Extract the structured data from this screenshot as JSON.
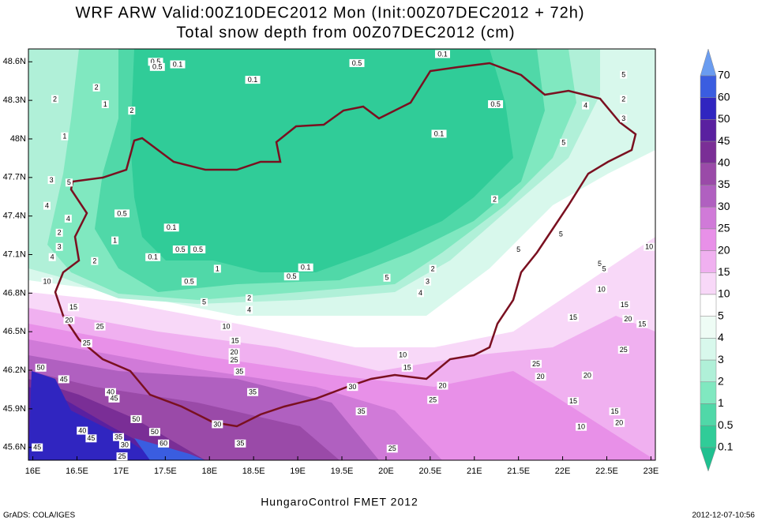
{
  "chart_data": {
    "type": "contour-map",
    "title": "WRF ARW Valid:00Z10DEC2012 Mon (Init:00Z07DEC2012 + 72h)",
    "subtitle": "Total snow depth from 00Z07DEC2012 (cm)",
    "xlim": [
      15.95,
      23.05
    ],
    "ylim": [
      45.5,
      48.7
    ],
    "xticks": [
      {
        "value": 16,
        "label": "16E"
      },
      {
        "value": 16.5,
        "label": "16.5E"
      },
      {
        "value": 17,
        "label": "17E"
      },
      {
        "value": 17.5,
        "label": "17.5E"
      },
      {
        "value": 18,
        "label": "18E"
      },
      {
        "value": 18.5,
        "label": "18.5E"
      },
      {
        "value": 19,
        "label": "19E"
      },
      {
        "value": 19.5,
        "label": "19.5E"
      },
      {
        "value": 20,
        "label": "20E"
      },
      {
        "value": 20.5,
        "label": "20.5E"
      },
      {
        "value": 21,
        "label": "21E"
      },
      {
        "value": 21.5,
        "label": "21.5E"
      },
      {
        "value": 22,
        "label": "22E"
      },
      {
        "value": 22.5,
        "label": "22.5E"
      },
      {
        "value": 23,
        "label": "23E"
      }
    ],
    "yticks": [
      {
        "value": 45.6,
        "label": "45.6N"
      },
      {
        "value": 45.9,
        "label": "45.9N"
      },
      {
        "value": 46.2,
        "label": "46.2N"
      },
      {
        "value": 46.5,
        "label": "46.5N"
      },
      {
        "value": 46.8,
        "label": "46.8N"
      },
      {
        "value": 47.1,
        "label": "47.1N"
      },
      {
        "value": 47.4,
        "label": "47.4N"
      },
      {
        "value": 47.7,
        "label": "47.7N"
      },
      {
        "value": 48,
        "label": "48N"
      },
      {
        "value": 48.3,
        "label": "48.3N"
      },
      {
        "value": 48.6,
        "label": "48.6N"
      }
    ],
    "colorbar": {
      "levels": [
        70,
        60,
        50,
        45,
        40,
        35,
        30,
        25,
        20,
        15,
        10,
        5,
        4,
        3,
        2,
        1,
        0.5,
        0.1
      ],
      "colors": [
        "#6a9cf0",
        "#3a5de0",
        "#3025c0",
        "#5a20a0",
        "#7a2e96",
        "#9a4aa8",
        "#b060c0",
        "#d07ad8",
        "#e890e8",
        "#f0b0f0",
        "#f8d8f8",
        "#ffffff",
        "#eefcf5",
        "#d8f8ec",
        "#b0f0d8",
        "#80e8c0",
        "#50d8a8",
        "#30cc98",
        "#20c090"
      ]
    },
    "contour_labels": [
      {
        "text": "0.5",
        "lon": 17.39,
        "lat": 48.6
      },
      {
        "text": "0.5",
        "lon": 17.41,
        "lat": 48.56
      },
      {
        "text": "0.1",
        "lon": 17.64,
        "lat": 48.58
      },
      {
        "text": "0.1",
        "lon": 18.49,
        "lat": 48.46
      },
      {
        "text": "0.5",
        "lon": 19.67,
        "lat": 48.59
      },
      {
        "text": "0.1",
        "lon": 20.64,
        "lat": 48.66
      },
      {
        "text": "2",
        "lon": 16.72,
        "lat": 48.4
      },
      {
        "text": "2",
        "lon": 16.25,
        "lat": 48.31
      },
      {
        "text": "1",
        "lon": 16.82,
        "lat": 48.27
      },
      {
        "text": "2",
        "lon": 17.12,
        "lat": 48.22
      },
      {
        "text": "1",
        "lon": 16.36,
        "lat": 48.02
      },
      {
        "text": "0.1",
        "lon": 20.6,
        "lat": 48.04
      },
      {
        "text": "0.5",
        "lon": 21.24,
        "lat": 48.27
      },
      {
        "text": "5",
        "lon": 22.69,
        "lat": 48.5
      },
      {
        "text": "2",
        "lon": 22.69,
        "lat": 48.31
      },
      {
        "text": "4",
        "lon": 22.26,
        "lat": 48.26
      },
      {
        "text": "3",
        "lon": 22.69,
        "lat": 48.16
      },
      {
        "text": "5",
        "lon": 22.01,
        "lat": 47.97
      },
      {
        "text": "2",
        "lon": 21.23,
        "lat": 47.53
      },
      {
        "text": "5",
        "lon": 21.98,
        "lat": 47.26
      },
      {
        "text": "5",
        "lon": 21.5,
        "lat": 47.14
      },
      {
        "text": "2",
        "lon": 20.53,
        "lat": 46.99
      },
      {
        "text": "3",
        "lon": 20.47,
        "lat": 46.89
      },
      {
        "text": "5",
        "lon": 20.01,
        "lat": 46.92
      },
      {
        "text": "4",
        "lon": 20.39,
        "lat": 46.8
      },
      {
        "text": "0.1",
        "lon": 19.09,
        "lat": 47.0
      },
      {
        "text": "0.5",
        "lon": 18.93,
        "lat": 46.93
      },
      {
        "text": "0.5",
        "lon": 17.01,
        "lat": 47.42
      },
      {
        "text": "0.1",
        "lon": 17.57,
        "lat": 47.31
      },
      {
        "text": "1",
        "lon": 16.93,
        "lat": 47.21
      },
      {
        "text": "0.5",
        "lon": 17.67,
        "lat": 47.14
      },
      {
        "text": "0.5",
        "lon": 17.87,
        "lat": 47.14
      },
      {
        "text": "0.1",
        "lon": 17.36,
        "lat": 47.08
      },
      {
        "text": "2",
        "lon": 16.7,
        "lat": 47.05
      },
      {
        "text": "0.5",
        "lon": 17.77,
        "lat": 46.89
      },
      {
        "text": "1",
        "lon": 18.09,
        "lat": 46.99
      },
      {
        "text": "5",
        "lon": 17.94,
        "lat": 46.73
      },
      {
        "text": "2",
        "lon": 18.45,
        "lat": 46.76
      },
      {
        "text": "4",
        "lon": 18.45,
        "lat": 46.67
      },
      {
        "text": "5",
        "lon": 16.41,
        "lat": 47.66
      },
      {
        "text": "3",
        "lon": 16.21,
        "lat": 47.68
      },
      {
        "text": "4",
        "lon": 16.16,
        "lat": 47.48
      },
      {
        "text": "4",
        "lon": 16.4,
        "lat": 47.38
      },
      {
        "text": "2",
        "lon": 16.3,
        "lat": 47.27
      },
      {
        "text": "3",
        "lon": 16.3,
        "lat": 47.16
      },
      {
        "text": "4",
        "lon": 16.22,
        "lat": 47.08
      },
      {
        "text": "10",
        "lon": 16.16,
        "lat": 46.89
      },
      {
        "text": "15",
        "lon": 16.46,
        "lat": 46.69
      },
      {
        "text": "20",
        "lon": 16.41,
        "lat": 46.59
      },
      {
        "text": "25",
        "lon": 16.76,
        "lat": 46.54
      },
      {
        "text": "25",
        "lon": 16.61,
        "lat": 46.41
      },
      {
        "text": "10",
        "lon": 18.19,
        "lat": 46.54
      },
      {
        "text": "15",
        "lon": 18.29,
        "lat": 46.43
      },
      {
        "text": "20",
        "lon": 18.28,
        "lat": 46.34
      },
      {
        "text": "25",
        "lon": 18.28,
        "lat": 46.28
      },
      {
        "text": "35",
        "lon": 18.34,
        "lat": 46.19
      },
      {
        "text": "35",
        "lon": 18.49,
        "lat": 46.03
      },
      {
        "text": "30",
        "lon": 19.62,
        "lat": 46.07
      },
      {
        "text": "35",
        "lon": 19.72,
        "lat": 45.88
      },
      {
        "text": "30",
        "lon": 18.09,
        "lat": 45.78
      },
      {
        "text": "35",
        "lon": 18.35,
        "lat": 45.63
      },
      {
        "text": "25",
        "lon": 20.07,
        "lat": 45.59
      },
      {
        "text": "25",
        "lon": 20.53,
        "lat": 45.97
      },
      {
        "text": "20",
        "lon": 20.64,
        "lat": 46.08
      },
      {
        "text": "15",
        "lon": 20.24,
        "lat": 46.22
      },
      {
        "text": "10",
        "lon": 20.19,
        "lat": 46.32
      },
      {
        "text": "25",
        "lon": 21.7,
        "lat": 46.25
      },
      {
        "text": "20",
        "lon": 21.75,
        "lat": 46.15
      },
      {
        "text": "15",
        "lon": 22.12,
        "lat": 46.61
      },
      {
        "text": "20",
        "lon": 22.28,
        "lat": 46.16
      },
      {
        "text": "15",
        "lon": 22.12,
        "lat": 45.96
      },
      {
        "text": "5",
        "lon": 22.42,
        "lat": 47.03
      },
      {
        "text": "5",
        "lon": 22.47,
        "lat": 46.99
      },
      {
        "text": "10",
        "lon": 22.44,
        "lat": 46.83
      },
      {
        "text": "15",
        "lon": 22.7,
        "lat": 46.71
      },
      {
        "text": "20",
        "lon": 22.74,
        "lat": 46.6
      },
      {
        "text": "15",
        "lon": 22.9,
        "lat": 46.56
      },
      {
        "text": "25",
        "lon": 22.69,
        "lat": 46.36
      },
      {
        "text": "10",
        "lon": 22.98,
        "lat": 47.16
      },
      {
        "text": "15",
        "lon": 22.59,
        "lat": 45.88
      },
      {
        "text": "20",
        "lon": 22.64,
        "lat": 45.79
      },
      {
        "text": "10",
        "lon": 22.21,
        "lat": 45.76
      },
      {
        "text": "50",
        "lon": 16.09,
        "lat": 46.22
      },
      {
        "text": "45",
        "lon": 16.35,
        "lat": 46.13
      },
      {
        "text": "40",
        "lon": 16.88,
        "lat": 46.03
      },
      {
        "text": "45",
        "lon": 16.92,
        "lat": 45.98
      },
      {
        "text": "50",
        "lon": 17.17,
        "lat": 45.82
      },
      {
        "text": "50",
        "lon": 17.38,
        "lat": 45.72
      },
      {
        "text": "40",
        "lon": 16.56,
        "lat": 45.73
      },
      {
        "text": "45",
        "lon": 16.66,
        "lat": 45.67
      },
      {
        "text": "35",
        "lon": 16.97,
        "lat": 45.68
      },
      {
        "text": "30",
        "lon": 17.04,
        "lat": 45.62
      },
      {
        "text": "60",
        "lon": 17.48,
        "lat": 45.63
      },
      {
        "text": "25",
        "lon": 17.01,
        "lat": 45.53
      },
      {
        "text": "45",
        "lon": 16.05,
        "lat": 45.6
      }
    ],
    "footer": "HungaroControl FMET 2012",
    "credit": "GrADS: COLA/IGES",
    "timestamp": "2012-12-07-10:56"
  }
}
